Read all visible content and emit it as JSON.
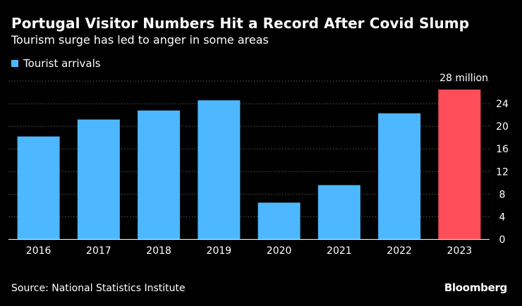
{
  "header": {
    "title": "Portugal Visitor Numbers Hit a Record After Covid Slump",
    "subtitle": "Tourism surge has led to anger in some areas"
  },
  "legend": {
    "label": "Tourist arrivals"
  },
  "colors": {
    "primary_bar": "#4db8ff",
    "highlight_bar": "#ff4d5a",
    "grid": "#5a5a5a",
    "axis": "#ffffff",
    "background": "#000000",
    "text": "#ffffff"
  },
  "chart_data": {
    "type": "bar",
    "title": "Portugal Visitor Numbers Hit a Record After Covid Slump",
    "subtitle": "Tourism surge has led to anger in some areas",
    "categories": [
      "2016",
      "2017",
      "2018",
      "2019",
      "2020",
      "2021",
      "2022",
      "2023"
    ],
    "series": [
      {
        "name": "Tourist arrivals",
        "values": [
          18.2,
          21.2,
          22.8,
          24.6,
          6.5,
          9.6,
          22.3,
          26.5
        ]
      }
    ],
    "highlight_index": 7,
    "y_ticks": [
      0,
      4,
      8,
      12,
      16,
      20,
      24,
      28
    ],
    "y_top_label": "28 million",
    "ylim": [
      0,
      28
    ],
    "xlabel": "",
    "ylabel": "",
    "grid": true,
    "legend_position": "top-left",
    "y_axis_position": "right"
  },
  "footer": {
    "source": "Source: National Statistics Institute",
    "brand": "Bloomberg"
  }
}
